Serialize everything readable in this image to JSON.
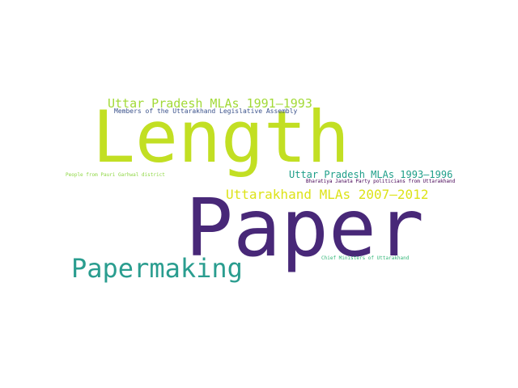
{
  "word_cloud": {
    "words": [
      {
        "text": "Length",
        "color": "#c2df23"
      },
      {
        "text": "Paper",
        "color": "#482878"
      },
      {
        "text": "Papermaking",
        "color": "#2a9d8f"
      },
      {
        "text": "Uttarakhand MLAs 2007–2012",
        "color": "#dde318"
      },
      {
        "text": "Uttar Pradesh MLAs 1991–1993",
        "color": "#a2da37"
      },
      {
        "text": "Uttar Pradesh MLAs 1993–1996",
        "color": "#1f9e89"
      },
      {
        "text": "Members of the Uttarakhand Legislative Assembly",
        "color": "#3b528b"
      },
      {
        "text": "People from Pauri Garhwal district",
        "color": "#8fd744"
      },
      {
        "text": "Bharatiya Janata Party politicians from Uttarakhand",
        "color": "#440154"
      },
      {
        "text": "Chief Ministers of Uttarakhand",
        "color": "#35b779"
      }
    ]
  }
}
